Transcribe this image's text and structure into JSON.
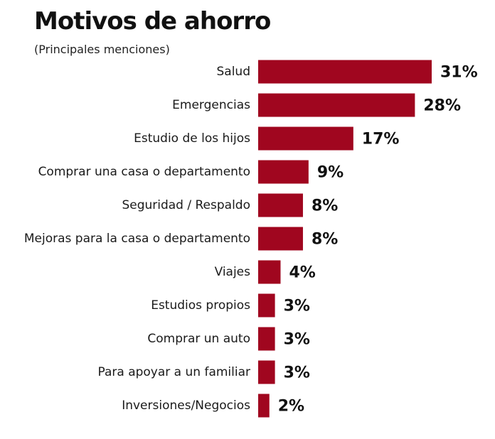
{
  "chart_data": {
    "type": "bar",
    "orientation": "horizontal",
    "title": "Motivos de ahorro",
    "subtitle": "(Principales menciones)",
    "categories": [
      "Salud",
      "Emergencias",
      "Estudio de los hijos",
      "Comprar una casa o departamento",
      "Seguridad / Respaldo",
      "Mejoras para la casa o departamento",
      "Viajes",
      "Estudios propios",
      "Comprar un auto",
      "Para apoyar a un familiar",
      "Inversiones/Negocios"
    ],
    "values": [
      31,
      28,
      17,
      9,
      8,
      8,
      4,
      3,
      3,
      3,
      2
    ],
    "value_labels": [
      "31%",
      "28%",
      "17%",
      "9%",
      "8%",
      "8%",
      "4%",
      "3%",
      "3%",
      "3%",
      "2%"
    ],
    "unit": "%",
    "xlim": [
      0,
      31
    ],
    "grid": false,
    "bar_color": "#a0061f"
  }
}
